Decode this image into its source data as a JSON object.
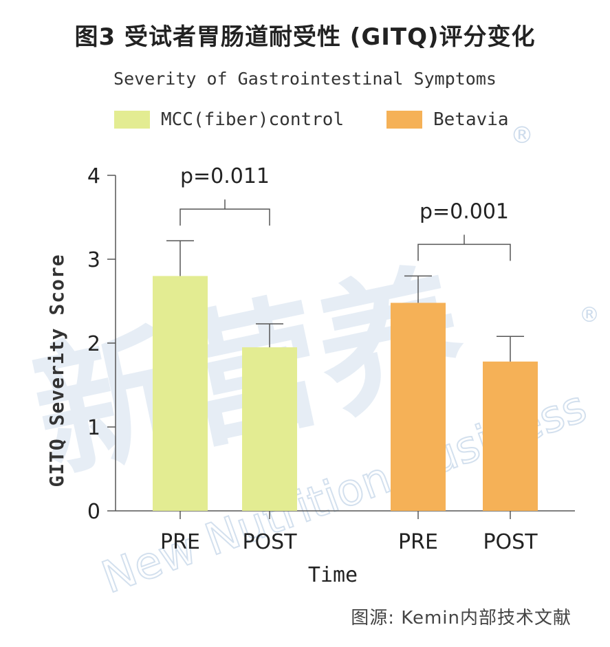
{
  "header": {
    "title": "图3 受试者胃肠道耐受性 (GITQ)评分变化",
    "subtitle": "Severity of Gastrointestinal Symptoms"
  },
  "source_note": "图源: Kemin内部技术文献",
  "watermark": {
    "brand_cn": "新营养",
    "brand_en": "New Nutrition Business",
    "registered_mark": "®"
  },
  "colors": {
    "control": "#e3ec92",
    "betavia": "#f5b157",
    "axis": "#555555",
    "watermark": "#c9d9ea"
  },
  "chart_data": {
    "type": "bar",
    "title": "Severity of Gastrointestinal Symptoms",
    "xlabel": "Time",
    "ylabel": "GITQ Severity Score",
    "ylim": [
      0,
      4
    ],
    "yticks": [
      0,
      1,
      2,
      3,
      4
    ],
    "legend_position": "top",
    "groups": [
      {
        "name": "MCC(fiber)control",
        "color": "#e3ec92",
        "bars": [
          {
            "category": "PRE",
            "value": 2.8,
            "error": 0.42
          },
          {
            "category": "POST",
            "value": 1.95,
            "error": 0.28
          }
        ],
        "p_value": "p=0.011"
      },
      {
        "name": "Betavia",
        "color": "#f5b157",
        "bars": [
          {
            "category": "PRE",
            "value": 2.48,
            "error": 0.32
          },
          {
            "category": "POST",
            "value": 1.78,
            "error": 0.3
          }
        ],
        "p_value": "p=0.001"
      }
    ]
  }
}
